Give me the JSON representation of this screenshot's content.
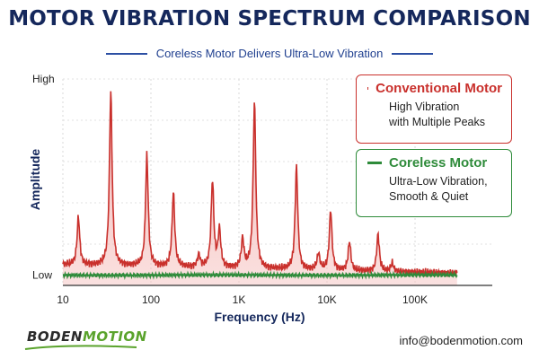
{
  "brand": {
    "name_part1": "BODEN",
    "name_part2": "MOTION",
    "contact": "info@bodenmotion.com"
  },
  "colors": {
    "title": "#15285c",
    "conventional": "#c9302c",
    "coreless": "#2e8b3a",
    "accent": "#5aa32c"
  },
  "chart_data": {
    "type": "line",
    "title": "MOTOR VIBRATION SPECTRUM COMPARISON",
    "subtitle": "Coreless Motor Delivers Ultra-Low Vibration",
    "xlabel": "Frequency (Hz)",
    "ylabel": "Amplitude",
    "x_scale": "log",
    "xlim": [
      10,
      300000
    ],
    "ylim": [
      0,
      1
    ],
    "x_ticks": [
      {
        "value": 10,
        "label": "10"
      },
      {
        "value": 100,
        "label": "100"
      },
      {
        "value": 1000,
        "label": "1K"
      },
      {
        "value": 10000,
        "label": "10K"
      },
      {
        "value": 100000,
        "label": "100K"
      }
    ],
    "y_ticks": [
      {
        "value": 0.05,
        "label": "Low"
      },
      {
        "value": 1.0,
        "label": "High"
      }
    ],
    "grid": true,
    "legend_position": "top-right",
    "series": [
      {
        "name": "Conventional Motor",
        "description": [
          "High Vibration",
          "with Multiple Peaks"
        ],
        "color": "#c9302c",
        "baseline": 0.1,
        "peaks": [
          {
            "x": 15,
            "y": 0.33
          },
          {
            "x": 35,
            "y": 0.95
          },
          {
            "x": 90,
            "y": 0.64
          },
          {
            "x": 180,
            "y": 0.46
          },
          {
            "x": 350,
            "y": 0.16
          },
          {
            "x": 500,
            "y": 0.52
          },
          {
            "x": 600,
            "y": 0.28
          },
          {
            "x": 1100,
            "y": 0.24
          },
          {
            "x": 1500,
            "y": 0.91
          },
          {
            "x": 4500,
            "y": 0.6
          },
          {
            "x": 8000,
            "y": 0.18
          },
          {
            "x": 11000,
            "y": 0.39
          },
          {
            "x": 18000,
            "y": 0.24
          },
          {
            "x": 38000,
            "y": 0.28
          },
          {
            "x": 55000,
            "y": 0.14
          }
        ]
      },
      {
        "name": "Coreless Motor",
        "description": [
          "Ultra-Low Vibration,",
          "Smooth & Quiet"
        ],
        "color": "#2e8b3a",
        "baseline": 0.05
      }
    ]
  }
}
